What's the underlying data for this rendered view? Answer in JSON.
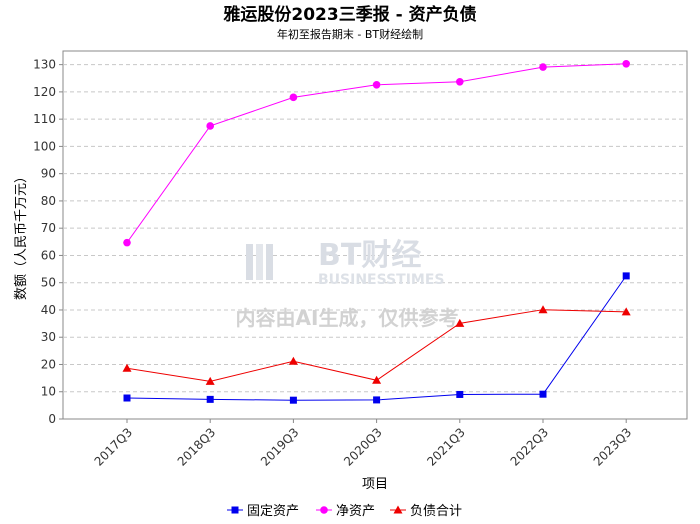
{
  "chart_data": {
    "type": "line",
    "title": "雅运股份2023三季报 - 资产负债",
    "subtitle": "年初至报告期末 - BT财经绘制",
    "xlabel": "项目",
    "ylabel": "数额（人民币千万元）",
    "categories": [
      "2017Q3",
      "2018Q3",
      "2019Q3",
      "2020Q3",
      "2021Q3",
      "2022Q3",
      "2023Q3"
    ],
    "ylim": [
      0,
      135
    ],
    "yticks": [
      0,
      10,
      20,
      30,
      40,
      50,
      60,
      70,
      80,
      90,
      100,
      110,
      120,
      130
    ],
    "grid": true,
    "legend_position": "bottom",
    "series": [
      {
        "name": "固定资产",
        "color": "#0000ee",
        "marker": "square",
        "values": [
          7.7,
          7.2,
          6.9,
          7.0,
          9.0,
          9.1,
          52.5
        ]
      },
      {
        "name": "净资产",
        "color": "#ff00ff",
        "marker": "circle",
        "values": [
          64.7,
          107.5,
          118.0,
          122.6,
          123.7,
          129.1,
          130.3
        ]
      },
      {
        "name": "负债合计",
        "color": "#ee0000",
        "marker": "triangle",
        "values": [
          18.6,
          13.8,
          21.2,
          14.2,
          35.1,
          40.1,
          39.3
        ]
      }
    ]
  },
  "watermark": {
    "logo_text": "BT财经",
    "logo_subtext": "BUSINESSTIMES",
    "ai_text": "内容由AI生成，仅供参考"
  }
}
